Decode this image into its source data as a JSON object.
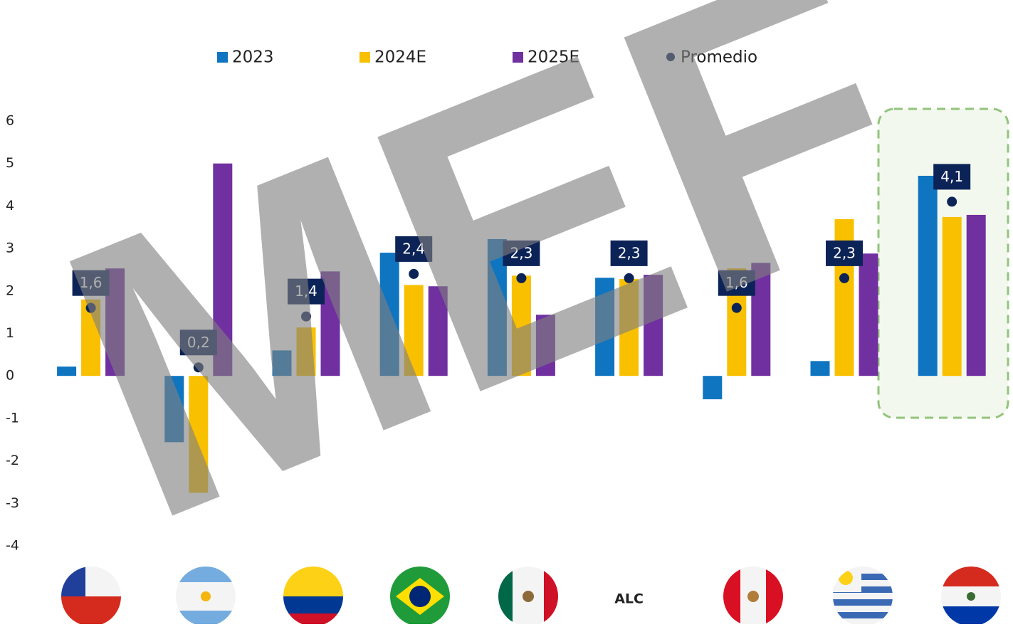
{
  "chart_data": {
    "type": "bar",
    "annotation": "MEF",
    "categories": [
      null,
      null,
      null,
      null,
      null,
      "ALC",
      null,
      null,
      null
    ],
    "series": [
      {
        "name": "2023",
        "color": "#0f75c1",
        "values": [
          0.22,
          -1.56,
          0.6,
          2.9,
          3.22,
          2.31,
          -0.55,
          0.35,
          4.71
        ]
      },
      {
        "name": "2024E",
        "color": "#f9c000",
        "values": [
          1.8,
          -2.75,
          1.14,
          2.14,
          2.36,
          2.28,
          2.53,
          3.69,
          3.74
        ]
      },
      {
        "name": "2025E",
        "color": "#7030a0",
        "values": [
          2.53,
          5.0,
          2.46,
          2.11,
          1.44,
          2.38,
          2.66,
          2.88,
          3.79
        ]
      },
      {
        "name": "Promedio",
        "color": "#0c2357",
        "mark": "dot",
        "values": [
          1.6,
          0.2,
          1.4,
          2.4,
          2.3,
          2.3,
          1.6,
          2.3,
          4.1
        ],
        "value_labels": [
          "1,6",
          "0,2",
          "1,4",
          "2,4",
          "2,3",
          "2,3",
          "1,6",
          "2,3",
          "4,1"
        ]
      }
    ],
    "ylim": [
      -4,
      6
    ],
    "yticks": [
      -4,
      -3,
      -2,
      -1,
      0,
      1,
      2,
      3,
      4,
      5,
      6
    ],
    "grid": false
  }
}
